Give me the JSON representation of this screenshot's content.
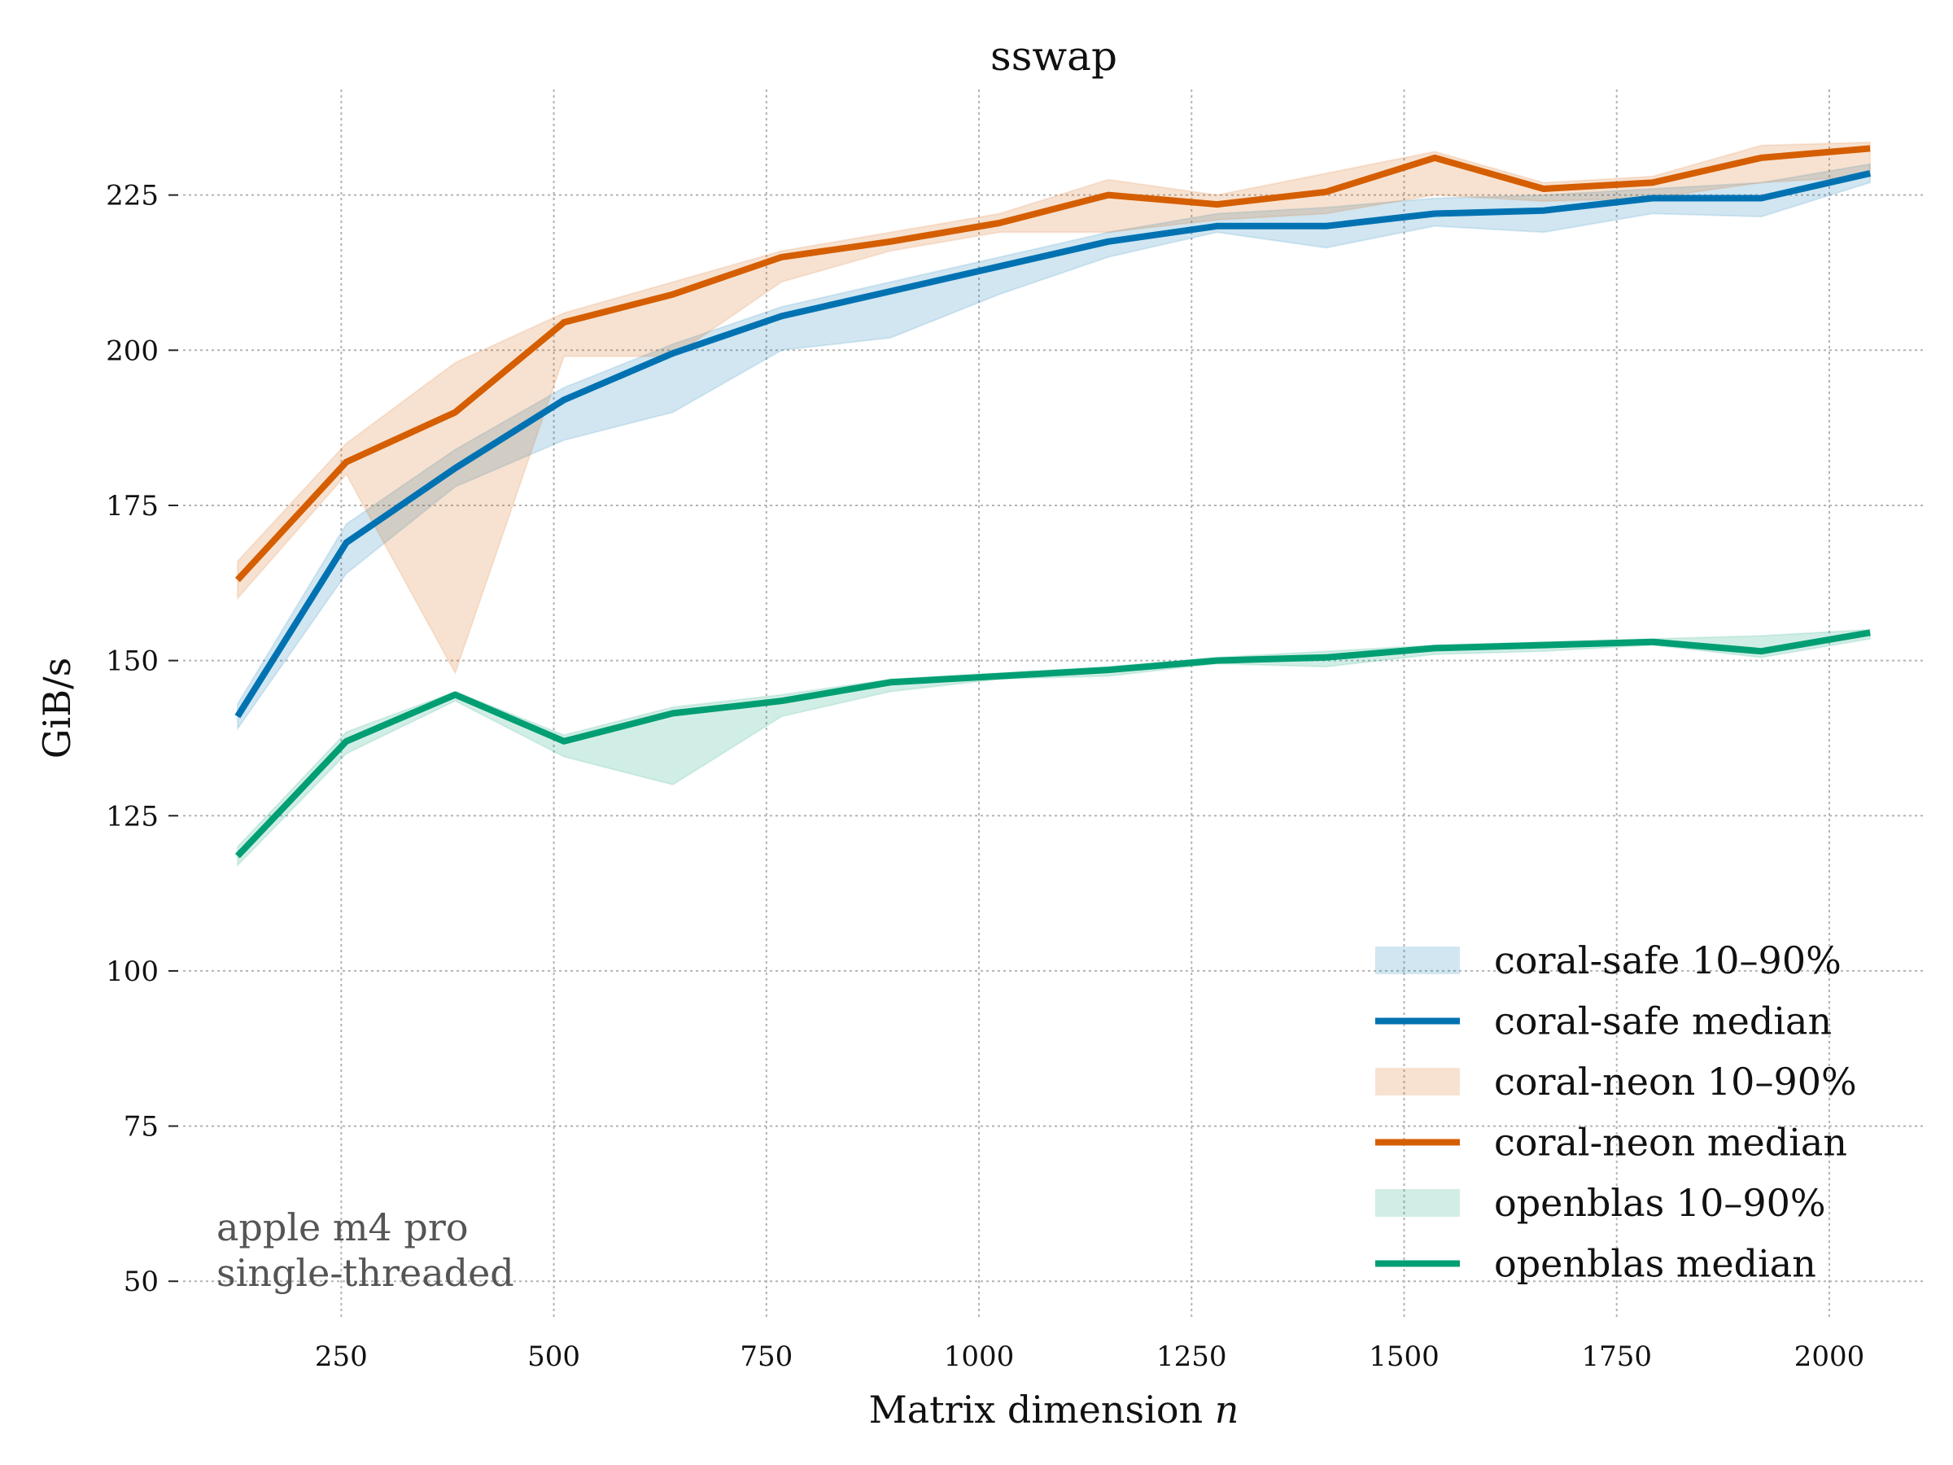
{
  "chart_data": {
    "type": "line",
    "title": "sswap",
    "xlabel": "Matrix dimension n",
    "ylabel": "GiB/s",
    "xlim": [
      64,
      2112
    ],
    "ylim": [
      44,
      242
    ],
    "x_ticks": [
      250,
      500,
      750,
      1000,
      1250,
      1500,
      1750,
      2000
    ],
    "x_tick_labels": [
      "250",
      "500",
      "750",
      "1000",
      "1250",
      "1500",
      "1750",
      "2000"
    ],
    "y_ticks": [
      50,
      75,
      100,
      125,
      150,
      175,
      200,
      225
    ],
    "y_tick_labels": [
      "50",
      "75",
      "100",
      "125",
      "150",
      "175",
      "200",
      "225"
    ],
    "grid": true,
    "x": [
      128,
      256,
      384,
      512,
      640,
      768,
      896,
      1024,
      1152,
      1280,
      1408,
      1536,
      1664,
      1792,
      1920,
      2048
    ],
    "series": [
      {
        "name": "coral-safe",
        "color": "#0072b2",
        "median": [
          141,
          169,
          181,
          192,
          199.5,
          205.5,
          209.5,
          213.5,
          217.5,
          220,
          220,
          222,
          222.5,
          224.5,
          224.5,
          228.5
        ],
        "p10": [
          139,
          164,
          178,
          185.5,
          190,
          200,
          202,
          209,
          215,
          219,
          216.5,
          220,
          219,
          222,
          221.5,
          227
        ],
        "p90": [
          143,
          172,
          184,
          194,
          201,
          207,
          211,
          215,
          219,
          222,
          223,
          224.5,
          225,
          226,
          227,
          230
        ]
      },
      {
        "name": "coral-neon",
        "color": "#d55e00",
        "median": [
          163,
          182,
          190,
          204.5,
          209,
          215,
          217.5,
          220.5,
          225,
          223.5,
          225.5,
          231,
          226,
          227,
          231,
          232.5
        ],
        "p10": [
          160,
          180,
          148,
          199,
          199,
          211,
          216,
          219,
          219,
          221,
          222,
          225,
          224,
          224.5,
          227,
          228
        ],
        "p90": [
          166,
          185,
          198,
          206,
          211,
          216,
          219,
          222,
          227.5,
          225,
          228.5,
          232,
          227,
          228,
          233,
          233.5
        ]
      },
      {
        "name": "openblas",
        "color": "#009e73",
        "median": [
          118.5,
          137,
          144.5,
          137,
          141.5,
          143.5,
          146.5,
          147.5,
          148.5,
          150,
          150.5,
          152,
          152.5,
          153,
          151.5,
          154.5
        ],
        "p10": [
          117,
          135,
          143.5,
          134.5,
          130,
          141,
          145,
          147,
          147.5,
          149.5,
          149,
          151,
          151.5,
          152.5,
          150.5,
          153.5
        ],
        "p90": [
          120,
          138.5,
          145,
          138,
          142.5,
          144.5,
          147,
          148,
          149,
          150.5,
          151.5,
          152.5,
          153,
          153.5,
          154,
          155
        ]
      }
    ],
    "legend": {
      "placement": "bottom-right",
      "entries": [
        {
          "label": "coral-safe 10–90%",
          "kind": "band",
          "series": "coral-safe"
        },
        {
          "label": "coral-safe median",
          "kind": "line",
          "series": "coral-safe"
        },
        {
          "label": "coral-neon 10–90%",
          "kind": "band",
          "series": "coral-neon"
        },
        {
          "label": "coral-neon median",
          "kind": "line",
          "series": "coral-neon"
        },
        {
          "label": "openblas 10–90%",
          "kind": "band",
          "series": "openblas"
        },
        {
          "label": "openblas median",
          "kind": "line",
          "series": "openblas"
        }
      ]
    },
    "annotation": [
      "apple m4 pro",
      "single-threaded"
    ]
  }
}
